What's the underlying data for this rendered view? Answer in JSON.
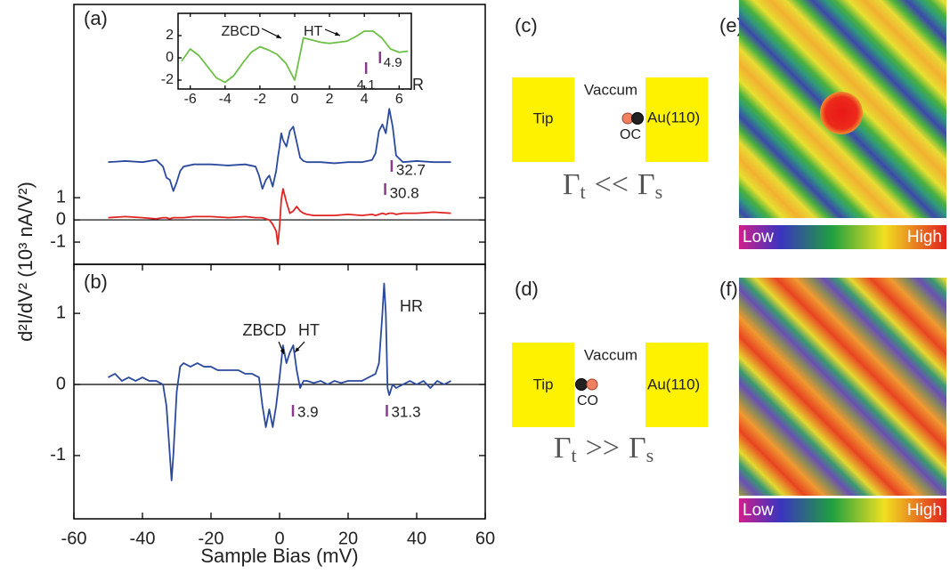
{
  "chart_data": [
    {
      "type": "line",
      "panel_label": "(a)",
      "ylabel": "d²I/dV² (10³ nA/V²)",
      "xlim": [
        -60,
        60
      ],
      "ylim": [
        -2,
        9.7
      ],
      "yticks": [
        -1,
        0,
        1
      ],
      "zero_line": true,
      "x": [
        -50,
        -45,
        -40,
        -36,
        -34,
        -33,
        -32,
        -31,
        -30,
        -29,
        -28,
        -25,
        -20,
        -15,
        -10,
        -7,
        -6,
        -5,
        -4,
        -3,
        -2,
        -1,
        -0.5,
        0,
        0.5,
        1,
        2,
        3,
        4,
        5,
        6,
        7,
        8,
        10,
        12,
        16,
        20,
        24,
        27,
        28,
        29,
        30,
        31,
        32,
        33,
        34,
        36,
        40,
        45,
        50
      ],
      "series": [
        {
          "color": "#2b4a9e",
          "values": [
            2.6,
            2.65,
            2.6,
            2.7,
            2.4,
            1.9,
            1.8,
            1.3,
            1.7,
            2.2,
            2.4,
            2.5,
            2.5,
            2.45,
            2.5,
            2.4,
            2.0,
            1.4,
            1.8,
            2.0,
            1.5,
            2.2,
            2.8,
            3.3,
            3.9,
            3.6,
            3.3,
            4.0,
            4.2,
            3.5,
            2.8,
            2.65,
            2.6,
            2.6,
            2.6,
            2.55,
            2.6,
            2.6,
            2.7,
            3.0,
            4.0,
            4.3,
            3.9,
            5.0,
            4.2,
            2.9,
            2.6,
            2.65,
            2.6,
            2.6
          ]
        },
        {
          "color": "#e02424",
          "values": [
            0.1,
            0.15,
            0.1,
            0.05,
            0.1,
            0.1,
            0.05,
            0.1,
            0.1,
            0.1,
            0.1,
            0.15,
            0.15,
            0.1,
            0.15,
            0.1,
            0.1,
            0.1,
            0.05,
            0.0,
            -0.2,
            -0.5,
            -1.1,
            -0.3,
            0.9,
            1.4,
            0.8,
            0.3,
            0.4,
            0.6,
            0.4,
            0.3,
            0.25,
            0.2,
            0.2,
            0.2,
            0.25,
            0.2,
            0.25,
            0.2,
            0.25,
            0.3,
            0.25,
            0.3,
            0.3,
            0.25,
            0.3,
            0.3,
            0.35,
            0.3
          ]
        }
      ],
      "peak_markers": [
        32.7,
        30.8
      ],
      "annotations": [
        "HR"
      ]
    },
    {
      "type": "line",
      "xlim": [
        -6.7,
        6.7
      ],
      "ylim": [
        -2.8,
        4
      ],
      "xticks": [
        -6,
        -4,
        -2,
        0,
        2,
        4,
        6
      ],
      "yticks": [
        -2,
        0,
        2
      ],
      "x": [
        -6.5,
        -6,
        -5.5,
        -5,
        -4.5,
        -4,
        -3.5,
        -3,
        -2.5,
        -2,
        -1.5,
        -1,
        -0.5,
        0,
        0.2,
        0.5,
        1,
        1.5,
        2,
        2.5,
        3,
        3.5,
        4,
        4.5,
        5,
        5.5,
        6,
        6.5
      ],
      "series": [
        {
          "color": "#6cbf45",
          "values": [
            -0.3,
            0.8,
            0.2,
            -0.8,
            -1.8,
            -2.2,
            -1.6,
            -0.5,
            0.5,
            1.0,
            0.7,
            0.3,
            -0.5,
            -2.0,
            -0.5,
            1.8,
            1.6,
            1.4,
            1.3,
            1.4,
            1.5,
            1.9,
            2.4,
            2.4,
            1.8,
            0.8,
            0.5,
            0.6
          ]
        }
      ],
      "peak_markers": [
        4.1,
        4.9
      ],
      "annotations": [
        "ZBCD",
        "HT"
      ]
    },
    {
      "type": "line",
      "panel_label": "(b)",
      "xlabel": "Sample Bias (mV)",
      "xlim": [
        -60,
        60
      ],
      "ylim": [
        -1.89,
        1.69
      ],
      "xticks": [
        -60,
        -40,
        -20,
        0,
        20,
        40,
        60
      ],
      "yticks": [
        -1,
        0,
        1
      ],
      "zero_line": true,
      "x": [
        -50,
        -48,
        -46,
        -44,
        -42,
        -40,
        -38,
        -36,
        -34,
        -33,
        -32,
        -31.5,
        -31,
        -30,
        -29,
        -28,
        -26,
        -24,
        -22,
        -20,
        -18,
        -16,
        -14,
        -12,
        -10,
        -8,
        -6,
        -5,
        -4,
        -3,
        -2,
        -1,
        0,
        1,
        2,
        3,
        4,
        5,
        6,
        7,
        8,
        10,
        12,
        14,
        16,
        18,
        20,
        22,
        24,
        26,
        28,
        29,
        30,
        30.5,
        31,
        31.5,
        32,
        33,
        34,
        36,
        38,
        40,
        42,
        44,
        46,
        48,
        50
      ],
      "series": [
        {
          "color": "#2b4a9e",
          "values": [
            0.1,
            0.15,
            0.05,
            0.1,
            0.05,
            0.1,
            0.05,
            0.05,
            0.0,
            -0.3,
            -1.0,
            -1.35,
            -1.0,
            -0.1,
            0.25,
            0.3,
            0.25,
            0.3,
            0.25,
            0.25,
            0.2,
            0.2,
            0.2,
            0.2,
            0.15,
            0.15,
            0.1,
            -0.3,
            -0.6,
            -0.35,
            -0.6,
            -0.3,
            0.1,
            0.55,
            0.3,
            0.45,
            0.55,
            0.2,
            -0.05,
            0.05,
            0.05,
            0.02,
            0.05,
            0.0,
            0.05,
            0.02,
            0.05,
            0.05,
            0.05,
            0.1,
            0.15,
            0.3,
            1.0,
            1.42,
            1.0,
            -0.05,
            -0.15,
            0.0,
            -0.05,
            0.0,
            0.05,
            0.0,
            0.05,
            -0.05,
            0.05,
            0.0,
            0.05
          ]
        }
      ],
      "peak_markers": [
        3.9,
        31.3
      ],
      "annotations": [
        "ZBCD",
        "HT",
        "HR"
      ]
    }
  ],
  "diagrams": [
    {
      "label": "(c)",
      "tip": "Tip",
      "gap": "Vaccum",
      "surface": "Au(110)",
      "molecule": "OC",
      "relation": [
        "Γ",
        "t",
        "<<",
        "Γ",
        "s"
      ]
    },
    {
      "label": "(d)",
      "tip": "Tip",
      "gap": "Vaccum",
      "surface": "Au(110)",
      "molecule": "CO",
      "relation": [
        "Γ",
        "t",
        ">>",
        "Γ",
        "s"
      ]
    }
  ],
  "maps": [
    {
      "label": "(e)",
      "low": "Low",
      "high": "High"
    },
    {
      "label": "(f)",
      "low": "Low",
      "high": "High"
    }
  ]
}
